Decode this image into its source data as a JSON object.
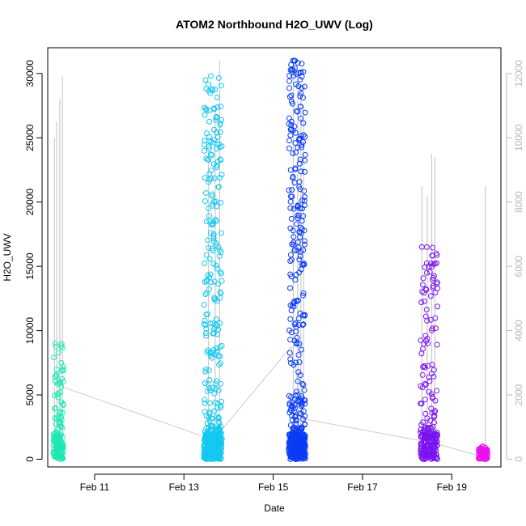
{
  "chart_data": {
    "type": "scatter",
    "title": "ATOM2 Northbound H2O_UWV (Log)",
    "xlabel": "Date",
    "ylabel": "H2O_UWV",
    "x_ticks": [
      "Feb 11",
      "Feb 13",
      "Feb 15",
      "Feb 17",
      "Feb 19"
    ],
    "x_tick_days": [
      11,
      13,
      15,
      17,
      19
    ],
    "xlim": [
      9.95,
      20.1
    ],
    "ylim": [
      -600,
      32000
    ],
    "y_ticks": [
      0,
      5000,
      10000,
      15000,
      20000,
      25000,
      30000
    ],
    "y2lim": [
      -240,
      12800
    ],
    "y2_ticks": [
      0,
      2000,
      4000,
      6000,
      8000,
      10000,
      12000
    ],
    "grid": false,
    "series": [
      {
        "color": "#1de8b4",
        "x_range": [
          10.08,
          10.3
        ],
        "y_values": [
          0,
          6900,
          9000
        ]
      },
      {
        "color": "#14c8f0",
        "x_range": [
          13.45,
          13.85
        ],
        "y_values": [
          0,
          12000,
          26000,
          29800
        ]
      },
      {
        "color": "#0a3cf5",
        "x_range": [
          15.35,
          15.72
        ],
        "y_values": [
          0,
          15500,
          19500,
          31000
        ]
      },
      {
        "color": "#7a14f0",
        "x_range": [
          18.3,
          18.68
        ],
        "y_values": [
          0,
          2500,
          16500
        ]
      },
      {
        "color": "#ee10ee",
        "x_range": [
          19.6,
          19.8
        ],
        "y_values": [
          0,
          1000
        ]
      }
    ],
    "secondary_series": {
      "color": "#cccccc",
      "spikes": [
        {
          "x": 10.1,
          "y": 10000
        },
        {
          "x": 10.15,
          "y": 10500
        },
        {
          "x": 10.22,
          "y": 11200
        },
        {
          "x": 10.28,
          "y": 11900
        },
        {
          "x": 13.55,
          "y": 9600
        },
        {
          "x": 13.7,
          "y": 10800
        },
        {
          "x": 13.8,
          "y": 12400
        },
        {
          "x": 15.45,
          "y": 12200
        },
        {
          "x": 15.55,
          "y": 11800
        },
        {
          "x": 15.62,
          "y": 11600
        },
        {
          "x": 15.68,
          "y": 11000
        },
        {
          "x": 18.33,
          "y": 8500
        },
        {
          "x": 18.45,
          "y": 8200
        },
        {
          "x": 18.55,
          "y": 9500
        },
        {
          "x": 18.62,
          "y": 9400
        },
        {
          "x": 19.75,
          "y": 8500
        }
      ],
      "trend": [
        {
          "x": 10.28,
          "y": 2250
        },
        {
          "x": 13.55,
          "y": 650
        },
        {
          "x": 13.9,
          "y": 1000
        },
        {
          "x": 15.4,
          "y": 3500
        },
        {
          "x": 15.7,
          "y": 1250
        },
        {
          "x": 18.6,
          "y": 500
        },
        {
          "x": 19.75,
          "y": 60
        }
      ]
    }
  }
}
